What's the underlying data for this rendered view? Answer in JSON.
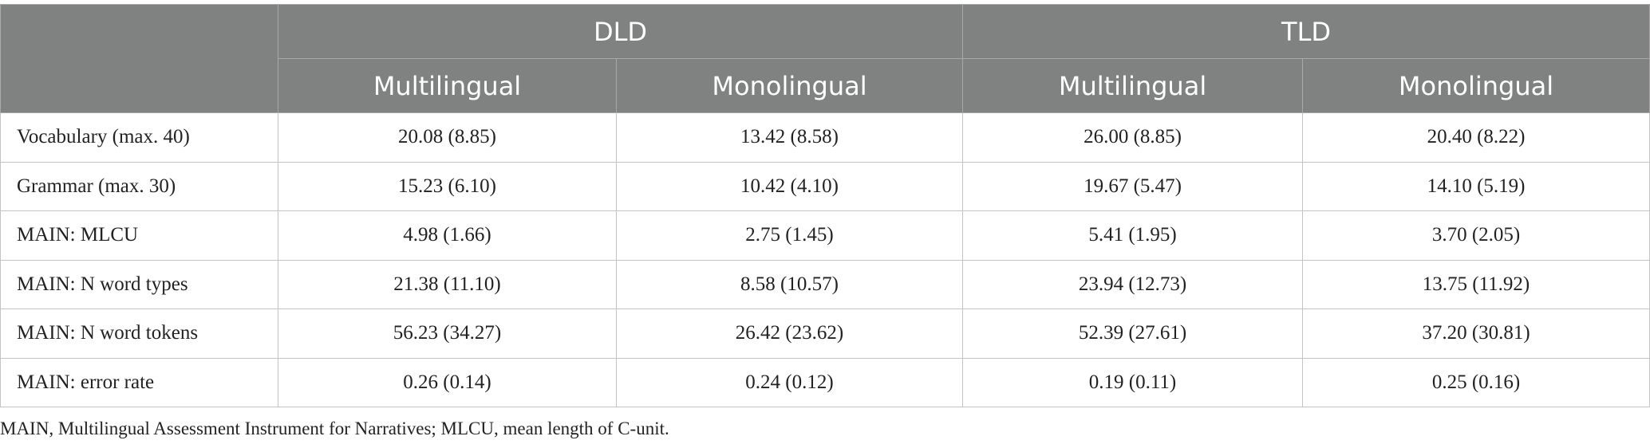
{
  "table": {
    "corner": "",
    "groups": [
      "DLD",
      "TLD"
    ],
    "subheaders": [
      "Multilingual",
      "Monolingual",
      "Multilingual",
      "Monolingual"
    ],
    "rows": [
      [
        "Vocabulary (max. 40)",
        "20.08 (8.85)",
        "13.42 (8.58)",
        "26.00 (8.85)",
        "20.40 (8.22)"
      ],
      [
        "Grammar (max. 30)",
        "15.23 (6.10)",
        "10.42 (4.10)",
        "19.67 (5.47)",
        "14.10 (5.19)"
      ],
      [
        "MAIN: MLCU",
        "4.98 (1.66)",
        "2.75 (1.45)",
        "5.41 (1.95)",
        "3.70 (2.05)"
      ],
      [
        "MAIN: N word types",
        "21.38 (11.10)",
        "8.58 (10.57)",
        "23.94 (12.73)",
        "13.75 (11.92)"
      ],
      [
        "MAIN: N word tokens",
        "56.23 (34.27)",
        "26.42 (23.62)",
        "52.39 (27.61)",
        "37.20 (30.81)"
      ],
      [
        "MAIN: error rate",
        "0.26 (0.14)",
        "0.24 (0.12)",
        "0.19 (0.11)",
        "0.25 (0.16)"
      ]
    ],
    "footnote": "MAIN, Multilingual Assessment Instrument for Narratives; MLCU, mean length of C-unit."
  }
}
